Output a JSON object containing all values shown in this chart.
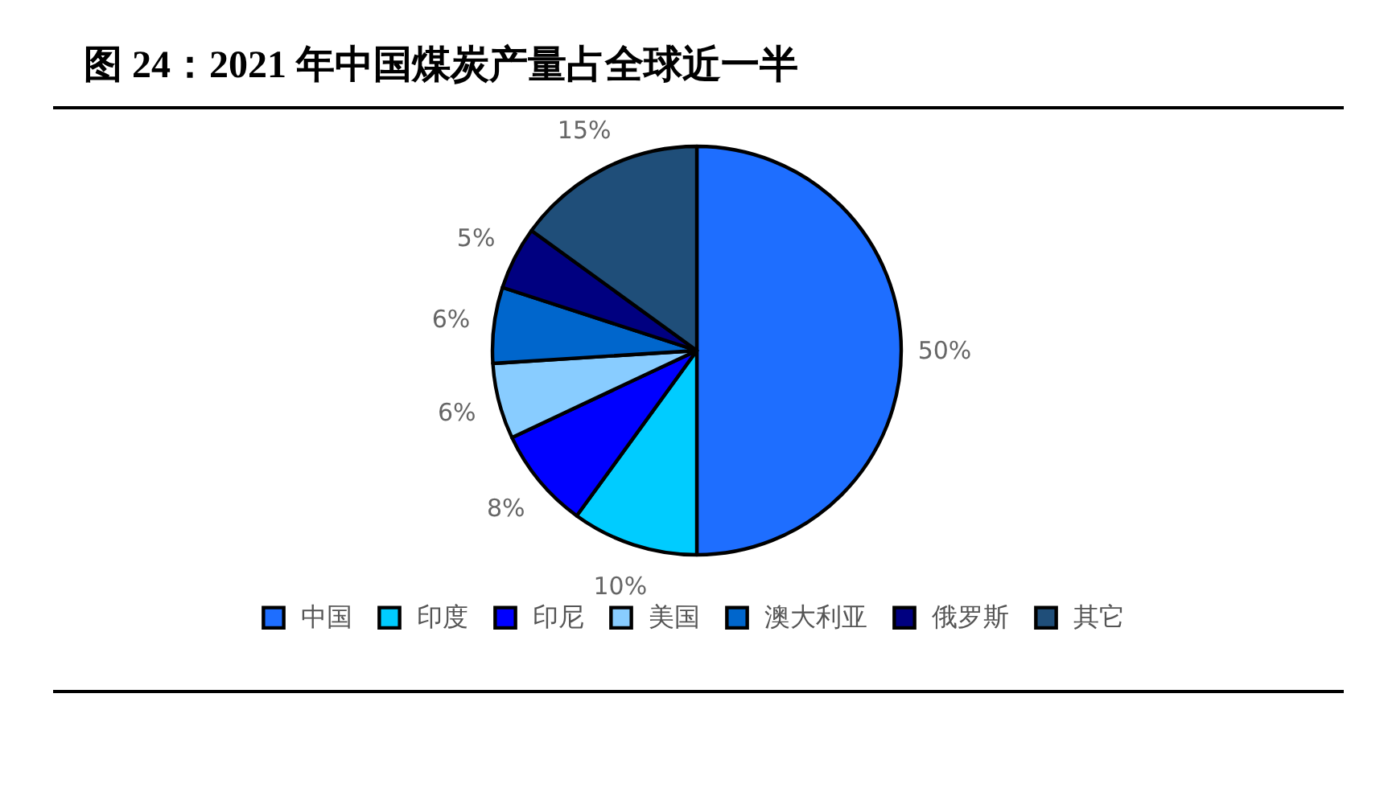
{
  "chart_data": {
    "type": "pie",
    "title": "图 24：2021 年中国煤炭产量占全球近一半",
    "categories": [
      "中国",
      "印度",
      "印尼",
      "美国",
      "澳大利亚",
      "俄罗斯",
      "其它"
    ],
    "values": [
      50,
      10,
      8,
      6,
      6,
      5,
      15
    ],
    "colors": [
      "#1e6eff",
      "#00ccff",
      "#0000ff",
      "#88ccff",
      "#0066cc",
      "#000080",
      "#1f4e79"
    ],
    "value_labels": [
      "50%",
      "10%",
      "8%",
      "6%",
      "6%",
      "5%",
      "15%"
    ],
    "legend": "bottom"
  }
}
